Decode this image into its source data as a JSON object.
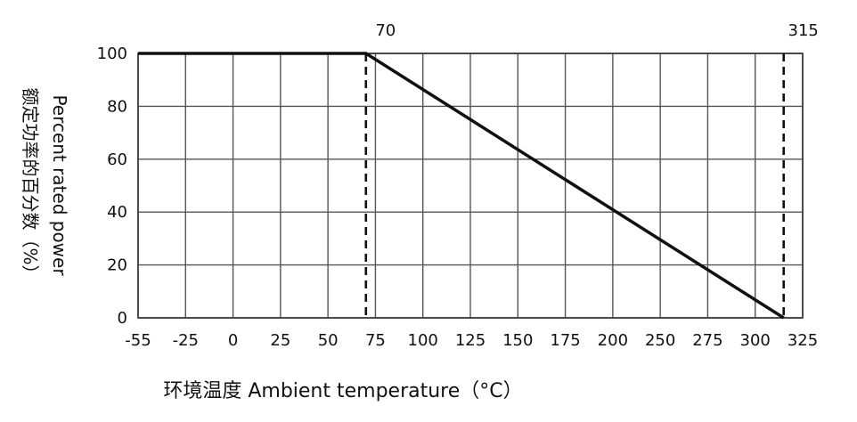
{
  "chart_data": {
    "type": "line",
    "xlabel": "环境温度 Ambient temperature（°C）",
    "ylabel_en": "Percent rated power",
    "ylabel_cn": "额定功率的百分数（%）",
    "x_ticks": [
      "-55",
      "-25",
      "0",
      "25",
      "50",
      "75",
      "100",
      "125",
      "150",
      "175",
      "200",
      "250",
      "275",
      "300",
      "325"
    ],
    "y_ticks": [
      "0",
      "20",
      "40",
      "60",
      "80",
      "100"
    ],
    "ylim": [
      0,
      100
    ],
    "grid": true,
    "series": [
      {
        "x": [
          -55,
          70,
          315
        ],
        "y": [
          100,
          100,
          0
        ]
      }
    ],
    "markers": [
      {
        "x": 70,
        "label": "70"
      },
      {
        "x": 315,
        "label": "315"
      }
    ]
  }
}
